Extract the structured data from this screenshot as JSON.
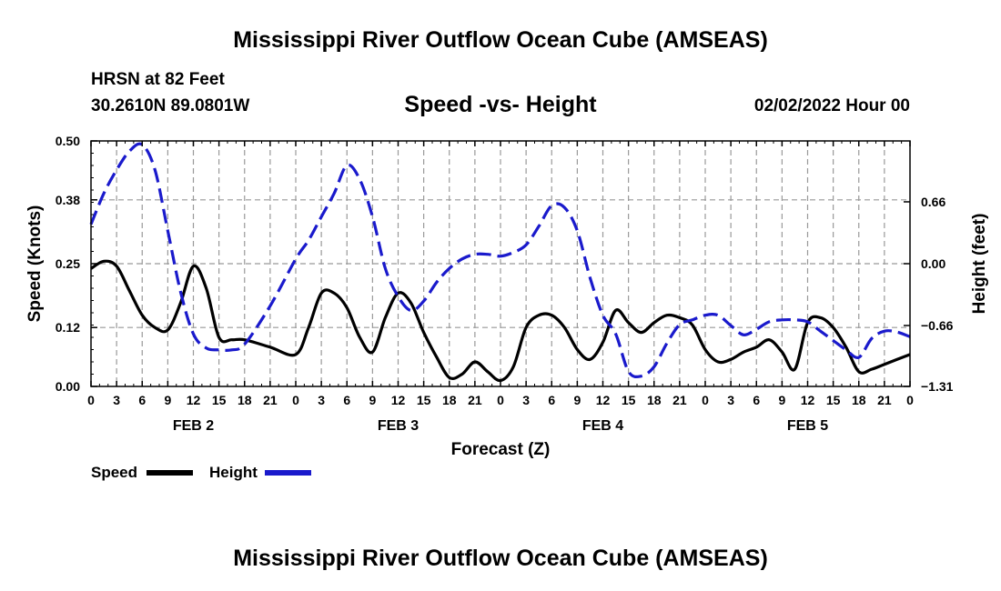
{
  "header": {
    "title": "Mississippi River Outflow Ocean Cube (AMSEAS)",
    "station": "HRSN at 82 Feet",
    "coordinates": "30.2610N  89.0801W",
    "subtitle": "Speed -vs- Height",
    "date": "02/02/2022 Hour 00"
  },
  "footer": {
    "title": "Mississippi River Outflow Ocean Cube (AMSEAS)"
  },
  "chart_data": {
    "type": "line",
    "title": "Speed -vs- Height",
    "xlabel": "Forecast (Z)",
    "ylabel": "Speed (Knots)",
    "ylabel_right": "Height (feet)",
    "x_range": [
      0,
      96
    ],
    "ylim": [
      0,
      0.5
    ],
    "ylim_right": [
      -1.31,
      1.31
    ],
    "yticks": [
      0.0,
      0.12,
      0.25,
      0.38,
      0.5
    ],
    "ytick_labels": [
      "0.00",
      "0.12",
      "0.25",
      "0.38",
      "0.50"
    ],
    "yticks_right": [
      -1.31,
      -0.66,
      0.0,
      0.66
    ],
    "ytick_labels_right": [
      "−1.31",
      "−0.66",
      "0.00",
      "0.66"
    ],
    "xtick_labels": [
      "0",
      "3",
      "6",
      "9",
      "12",
      "15",
      "18",
      "21",
      "0",
      "3",
      "6",
      "9",
      "12",
      "15",
      "18",
      "21",
      "0",
      "3",
      "6",
      "9",
      "12",
      "15",
      "18",
      "21",
      "0",
      "3",
      "6",
      "9",
      "12",
      "15",
      "18",
      "21",
      "0"
    ],
    "day_labels": [
      {
        "label": "FEB 2",
        "x": 12
      },
      {
        "label": "FEB 3",
        "x": 36
      },
      {
        "label": "FEB 4",
        "x": 60
      },
      {
        "label": "FEB 5",
        "x": 84
      }
    ],
    "grid": true,
    "legend_position": "bottom-left",
    "series": [
      {
        "name": "Speed",
        "axis": "left",
        "color": "#000000",
        "dash": "solid",
        "x": [
          0,
          1.5,
          3,
          4.5,
          6,
          7.5,
          9,
          10.5,
          12,
          13.5,
          15,
          16.5,
          18,
          21,
          24,
          25.5,
          27,
          28.5,
          30,
          31.5,
          33,
          34.5,
          36,
          37.5,
          39,
          40.5,
          42,
          43.5,
          45,
          46.5,
          48,
          49.5,
          51,
          52.5,
          54,
          55.5,
          57,
          58.5,
          60,
          61.5,
          63,
          64.5,
          66,
          67.5,
          69,
          70.5,
          72,
          73.5,
          75,
          76.5,
          78,
          79.5,
          81,
          82.5,
          84,
          85.5,
          87,
          88.5,
          90,
          91.5,
          93,
          94.5,
          96
        ],
        "y": [
          0.24,
          0.255,
          0.245,
          0.195,
          0.145,
          0.12,
          0.115,
          0.17,
          0.245,
          0.2,
          0.1,
          0.095,
          0.095,
          0.08,
          0.065,
          0.12,
          0.19,
          0.19,
          0.16,
          0.1,
          0.07,
          0.14,
          0.19,
          0.17,
          0.11,
          0.06,
          0.018,
          0.025,
          0.05,
          0.03,
          0.012,
          0.04,
          0.12,
          0.145,
          0.145,
          0.12,
          0.075,
          0.055,
          0.09,
          0.155,
          0.13,
          0.11,
          0.13,
          0.145,
          0.14,
          0.125,
          0.075,
          0.05,
          0.055,
          0.07,
          0.08,
          0.095,
          0.07,
          0.035,
          0.13,
          0.14,
          0.12,
          0.08,
          0.03,
          0.035,
          0.045,
          0.055,
          0.065
        ]
      },
      {
        "name": "Height",
        "axis": "right",
        "color": "#1a1acc",
        "dash": "dashed",
        "x": [
          0,
          1.5,
          3,
          4.5,
          6,
          7.5,
          9,
          10.5,
          12,
          13.5,
          15,
          16.5,
          18,
          21,
          24,
          25.5,
          27,
          28.5,
          30,
          31.5,
          33,
          34.5,
          36,
          37.5,
          39,
          40.5,
          42,
          43.5,
          45,
          46.5,
          48,
          49.5,
          51,
          52.5,
          54,
          55.5,
          57,
          58.5,
          60,
          61.5,
          63,
          64.5,
          66,
          67.5,
          69,
          70.5,
          72,
          73.5,
          75,
          76.5,
          78,
          79.5,
          81,
          82.5,
          84,
          85.5,
          87,
          88.5,
          90,
          91.5,
          93,
          94.5,
          96
        ],
        "y": [
          0.42,
          0.75,
          1.0,
          1.2,
          1.27,
          1.0,
          0.35,
          -0.3,
          -0.75,
          -0.9,
          -0.92,
          -0.92,
          -0.86,
          -0.45,
          0.05,
          0.25,
          0.5,
          0.75,
          1.05,
          0.9,
          0.5,
          -0.05,
          -0.35,
          -0.5,
          -0.4,
          -0.2,
          -0.05,
          0.05,
          0.1,
          0.1,
          0.08,
          0.12,
          0.2,
          0.4,
          0.62,
          0.6,
          0.35,
          -0.15,
          -0.55,
          -0.75,
          -1.15,
          -1.2,
          -1.1,
          -0.85,
          -0.65,
          -0.6,
          -0.55,
          -0.55,
          -0.66,
          -0.76,
          -0.7,
          -0.62,
          -0.6,
          -0.6,
          -0.62,
          -0.72,
          -0.82,
          -0.92,
          -1.0,
          -0.8,
          -0.72,
          -0.73,
          -0.78
        ]
      }
    ]
  }
}
